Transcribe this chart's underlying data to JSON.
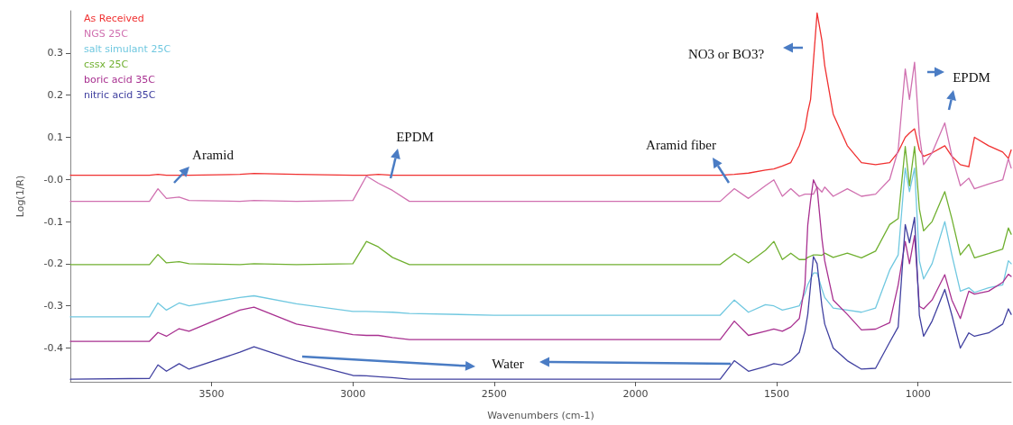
{
  "chart_data": {
    "type": "line",
    "xlabel": "Wavenumbers (cm-1)",
    "ylabel": "Log(1/R)",
    "xlim": [
      4000,
      670
    ],
    "xticks": [
      3500,
      3000,
      2500,
      2000,
      1500,
      1000
    ],
    "ylim": [
      -0.48,
      0.4
    ],
    "yticks": [
      0.3,
      0.2,
      0.1,
      {
        "value": 0,
        "label": "-0.0"
      },
      -0.1,
      -0.2,
      -0.3,
      -0.4
    ],
    "grid": false,
    "legend": "top left",
    "marker": "none",
    "line_style": "solid",
    "x": [
      4000,
      3720,
      3690,
      3660,
      3615,
      3580,
      3400,
      3350,
      3200,
      3000,
      2952,
      2910,
      2860,
      2800,
      2500,
      2000,
      1700,
      1650,
      1600,
      1540,
      1510,
      1480,
      1450,
      1420,
      1400,
      1390,
      1380,
      1370,
      1357,
      1340,
      1330,
      1300,
      1250,
      1200,
      1150,
      1100,
      1070,
      1045,
      1030,
      1012,
      995,
      980,
      950,
      905,
      880,
      850,
      820,
      800,
      750,
      700,
      680,
      670
    ],
    "series": [
      {
        "name": "As Received",
        "color": "#f03030",
        "values": [
          0.01,
          0.01,
          0.012,
          0.01,
          0.01,
          0.01,
          0.012,
          0.014,
          0.012,
          0.01,
          0.01,
          0.012,
          0.01,
          0.01,
          0.01,
          0.01,
          0.01,
          0.012,
          0.015,
          0.022,
          0.025,
          0.032,
          0.04,
          0.08,
          0.12,
          0.16,
          0.19,
          0.28,
          0.395,
          0.33,
          0.27,
          0.155,
          0.08,
          0.04,
          0.035,
          0.04,
          0.065,
          0.1,
          0.11,
          0.12,
          0.07,
          0.055,
          0.063,
          0.08,
          0.055,
          0.035,
          0.03,
          0.1,
          0.08,
          0.065,
          0.05,
          0.07
        ]
      },
      {
        "name": "NGS 25C",
        "color": "#d070b0",
        "values": [
          -0.052,
          -0.052,
          -0.022,
          -0.045,
          -0.042,
          -0.05,
          -0.052,
          -0.05,
          -0.052,
          -0.05,
          0.008,
          -0.009,
          -0.026,
          -0.052,
          -0.052,
          -0.052,
          -0.052,
          -0.022,
          -0.045,
          -0.015,
          -0.001,
          -0.04,
          -0.022,
          -0.04,
          -0.035,
          -0.035,
          -0.035,
          -0.035,
          -0.018,
          -0.03,
          -0.018,
          -0.04,
          -0.022,
          -0.04,
          -0.035,
          0.0,
          0.07,
          0.262,
          0.19,
          0.278,
          0.106,
          0.035,
          0.063,
          0.134,
          0.056,
          -0.015,
          0.003,
          -0.022,
          -0.011,
          -0.001,
          0.049,
          0.027
        ]
      },
      {
        "name": "salt simulant 25C",
        "color": "#70c8e0",
        "values": [
          -0.326,
          -0.326,
          -0.293,
          -0.31,
          -0.293,
          -0.3,
          -0.28,
          -0.276,
          -0.295,
          -0.313,
          -0.313,
          -0.314,
          -0.315,
          -0.318,
          -0.322,
          -0.322,
          -0.322,
          -0.286,
          -0.315,
          -0.297,
          -0.3,
          -0.31,
          -0.305,
          -0.3,
          -0.27,
          -0.25,
          -0.236,
          -0.222,
          -0.222,
          -0.26,
          -0.28,
          -0.305,
          -0.31,
          -0.315,
          -0.305,
          -0.215,
          -0.179,
          0.027,
          -0.029,
          0.027,
          -0.193,
          -0.236,
          -0.2,
          -0.1,
          -0.179,
          -0.265,
          -0.257,
          -0.268,
          -0.257,
          -0.25,
          -0.193,
          -0.2
        ]
      },
      {
        "name": "cssx 25C",
        "color": "#70b030",
        "values": [
          -0.202,
          -0.202,
          -0.178,
          -0.198,
          -0.195,
          -0.2,
          -0.202,
          -0.2,
          -0.202,
          -0.2,
          -0.147,
          -0.16,
          -0.185,
          -0.202,
          -0.202,
          -0.202,
          -0.202,
          -0.176,
          -0.198,
          -0.168,
          -0.147,
          -0.19,
          -0.175,
          -0.19,
          -0.19,
          -0.185,
          -0.182,
          -0.179,
          -0.179,
          -0.18,
          -0.175,
          -0.185,
          -0.175,
          -0.186,
          -0.17,
          -0.107,
          -0.093,
          0.078,
          -0.015,
          0.078,
          -0.07,
          -0.122,
          -0.1,
          -0.029,
          -0.093,
          -0.179,
          -0.154,
          -0.186,
          -0.176,
          -0.165,
          -0.115,
          -0.13
        ]
      },
      {
        "name": "boric acid 35C",
        "color": "#a83090",
        "values": [
          -0.384,
          -0.384,
          -0.363,
          -0.372,
          -0.354,
          -0.36,
          -0.31,
          -0.303,
          -0.343,
          -0.368,
          -0.37,
          -0.37,
          -0.375,
          -0.38,
          -0.38,
          -0.38,
          -0.38,
          -0.336,
          -0.37,
          -0.36,
          -0.355,
          -0.36,
          -0.35,
          -0.33,
          -0.25,
          -0.108,
          -0.05,
          -0.001,
          -0.02,
          -0.14,
          -0.193,
          -0.286,
          -0.32,
          -0.357,
          -0.355,
          -0.34,
          -0.25,
          -0.147,
          -0.2,
          -0.133,
          -0.301,
          -0.307,
          -0.286,
          -0.226,
          -0.286,
          -0.33,
          -0.265,
          -0.272,
          -0.265,
          -0.244,
          -0.225,
          -0.23
        ]
      },
      {
        "name": "nitric acid 35C",
        "color": "#4040a0",
        "values": [
          -0.474,
          -0.472,
          -0.44,
          -0.455,
          -0.437,
          -0.45,
          -0.41,
          -0.397,
          -0.43,
          -0.465,
          -0.466,
          -0.468,
          -0.47,
          -0.474,
          -0.474,
          -0.474,
          -0.474,
          -0.43,
          -0.455,
          -0.444,
          -0.437,
          -0.44,
          -0.43,
          -0.41,
          -0.36,
          -0.32,
          -0.25,
          -0.183,
          -0.2,
          -0.3,
          -0.343,
          -0.4,
          -0.43,
          -0.45,
          -0.448,
          -0.386,
          -0.35,
          -0.107,
          -0.15,
          -0.09,
          -0.322,
          -0.372,
          -0.336,
          -0.261,
          -0.322,
          -0.4,
          -0.364,
          -0.372,
          -0.364,
          -0.343,
          -0.307,
          -0.32
        ]
      }
    ],
    "annotations": [
      "Aramid",
      "EPDM",
      "Aramid fiber",
      "NO3 or BO3?",
      "EPDM",
      "Water"
    ]
  }
}
